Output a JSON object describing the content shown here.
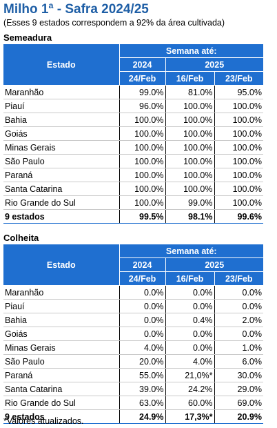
{
  "title": "Milho 1ª - Safra 2024/25",
  "subtitle": "(Esses 9 estados correspondem a 92% da área cultivada)",
  "header": {
    "estado": "Estado",
    "semana": "Semana até:",
    "year_a": "2024",
    "year_b": "2025",
    "date_1": "24/Feb",
    "date_2": "16/Feb",
    "date_3": "23/Feb"
  },
  "semeadura": {
    "title": "Semeadura",
    "rows": [
      {
        "estado": "Maranhão",
        "v1": "99.0%",
        "v2": "81.0%",
        "v3": "95.0%"
      },
      {
        "estado": "Piauí",
        "v1": "96.0%",
        "v2": "100.0%",
        "v3": "100.0%"
      },
      {
        "estado": "Bahia",
        "v1": "100.0%",
        "v2": "100.0%",
        "v3": "100.0%"
      },
      {
        "estado": "Goiás",
        "v1": "100.0%",
        "v2": "100.0%",
        "v3": "100.0%"
      },
      {
        "estado": "Minas Gerais",
        "v1": "100.0%",
        "v2": "100.0%",
        "v3": "100.0%"
      },
      {
        "estado": "São Paulo",
        "v1": "100.0%",
        "v2": "100.0%",
        "v3": "100.0%"
      },
      {
        "estado": "Paraná",
        "v1": "100.0%",
        "v2": "100.0%",
        "v3": "100.0%"
      },
      {
        "estado": "Santa Catarina",
        "v1": "100.0%",
        "v2": "100.0%",
        "v3": "100.0%"
      },
      {
        "estado": "Rio Grande do Sul",
        "v1": "100.0%",
        "v2": "99.0%",
        "v3": "100.0%"
      }
    ],
    "total": {
      "estado": "9 estados",
      "v1": "99.5%",
      "v2": "98.1%",
      "v3": "99.6%"
    }
  },
  "colheita": {
    "title": "Colheita",
    "rows": [
      {
        "estado": "Maranhão",
        "v1": "0.0%",
        "v2": "0.0%",
        "v3": "0.0%"
      },
      {
        "estado": "Piauí",
        "v1": "0.0%",
        "v2": "0.0%",
        "v3": "0.0%"
      },
      {
        "estado": "Bahia",
        "v1": "0.0%",
        "v2": "0.4%",
        "v3": "2.0%"
      },
      {
        "estado": "Goiás",
        "v1": "0.0%",
        "v2": "0.0%",
        "v3": "0.0%"
      },
      {
        "estado": "Minas Gerais",
        "v1": "4.0%",
        "v2": "0.0%",
        "v3": "1.0%"
      },
      {
        "estado": "São Paulo",
        "v1": "20.0%",
        "v2": "4.0%",
        "v3": "6.0%"
      },
      {
        "estado": "Paraná",
        "v1": "55.0%",
        "v2": "21,0%*",
        "v3": "30.0%"
      },
      {
        "estado": "Santa Catarina",
        "v1": "39.0%",
        "v2": "24.2%",
        "v3": "29.0%"
      },
      {
        "estado": "Rio Grande do Sul",
        "v1": "63.0%",
        "v2": "60.0%",
        "v3": "69.0%"
      }
    ],
    "total": {
      "estado": "9 estados",
      "v1": "24.9%",
      "v2": "17,3%*",
      "v3": "20.9%"
    }
  },
  "footnote": "*Valores atualizados."
}
